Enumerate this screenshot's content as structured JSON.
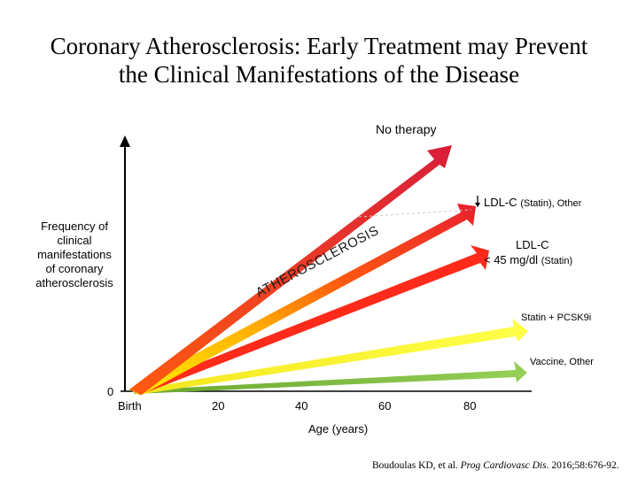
{
  "title": {
    "line1": "Coronary Atherosclerosis: Early Treatment may Prevent",
    "line2": "the Clinical Manifestations of the Disease"
  },
  "y_axis_label": [
    "Frequency of",
    "clinical",
    "manifestations",
    "of coronary",
    "atherosclerosis"
  ],
  "x_axis_label": "Age (years)",
  "y_zero_label": "0",
  "x_ticks": [
    "Birth",
    "20",
    "40",
    "60",
    "80"
  ],
  "arrow_text": "ATHEROSCLEROSIS",
  "arrows": {
    "no_therapy": "No therapy",
    "ldl_statin": {
      "main": "LDL-C ",
      "sub": "(Statin), Other"
    },
    "ldl_45": {
      "line1": "LDL-C",
      "line2_main": "< 45 mg/dl ",
      "line2_sub": "(Statin)"
    },
    "pcsk9": "Statin + PCSK9i",
    "vaccine": "Vaccine, Other"
  },
  "colors": {
    "no_therapy": "#e0243a",
    "ldl_statin": "#e8202e",
    "ldl_45": "#ff2a1a",
    "pcsk9": "#ffff33",
    "vaccine": "#8bc34a",
    "gradient_start": "#ffee00",
    "gradient_end": "#e8202e"
  },
  "citation": {
    "authors": "Boudoulas KD, et al. ",
    "journal": "Prog Cardiovasc Dis",
    "rest": ". 2016;58:676-92."
  }
}
